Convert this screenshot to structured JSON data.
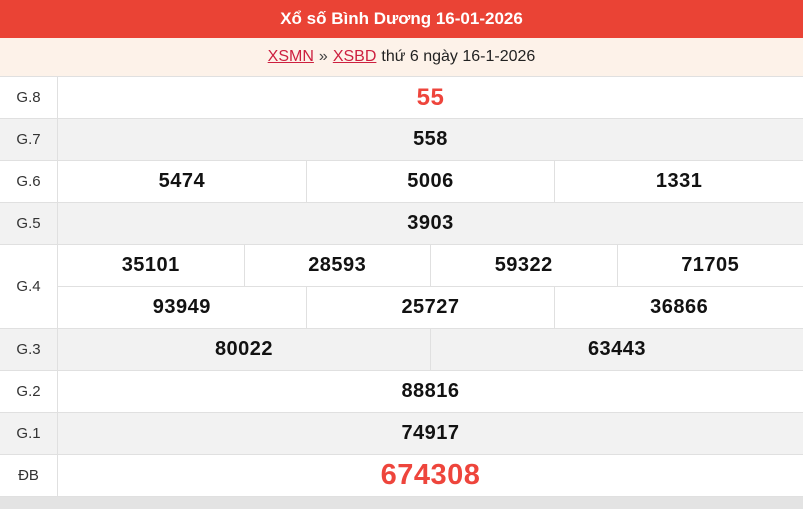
{
  "header": {
    "title": "Xổ số Bình Dương 16-01-2026"
  },
  "breadcrumb": {
    "region_link": "XSMN",
    "separator": "»",
    "station_link": "XSBD",
    "date_text": "thứ 6 ngày 16-1-2026"
  },
  "results": {
    "rows": [
      {
        "label": "G.8",
        "groups": [
          [
            "55"
          ]
        ]
      },
      {
        "label": "G.7",
        "groups": [
          [
            "558"
          ]
        ]
      },
      {
        "label": "G.6",
        "groups": [
          [
            "5474",
            "5006",
            "1331"
          ]
        ]
      },
      {
        "label": "G.5",
        "groups": [
          [
            "3903"
          ]
        ]
      },
      {
        "label": "G.4",
        "groups": [
          [
            "35101",
            "28593",
            "59322",
            "71705"
          ],
          [
            "93949",
            "25727",
            "36866"
          ]
        ]
      },
      {
        "label": "G.3",
        "groups": [
          [
            "80022",
            "63443"
          ]
        ]
      },
      {
        "label": "G.2",
        "groups": [
          [
            "88816"
          ]
        ]
      },
      {
        "label": "G.1",
        "groups": [
          [
            "74917"
          ]
        ]
      },
      {
        "label": "ĐB",
        "groups": [
          [
            "674308"
          ]
        ]
      }
    ]
  },
  "colors": {
    "header_bg": "#ea4335",
    "breadcrumb_bg": "#fdf2e9",
    "link_red": "#cd1f3f",
    "highlight_number_red": "#ee453c",
    "row_alt_bg": "#f2f2f2",
    "border": "#e0e0e0"
  }
}
